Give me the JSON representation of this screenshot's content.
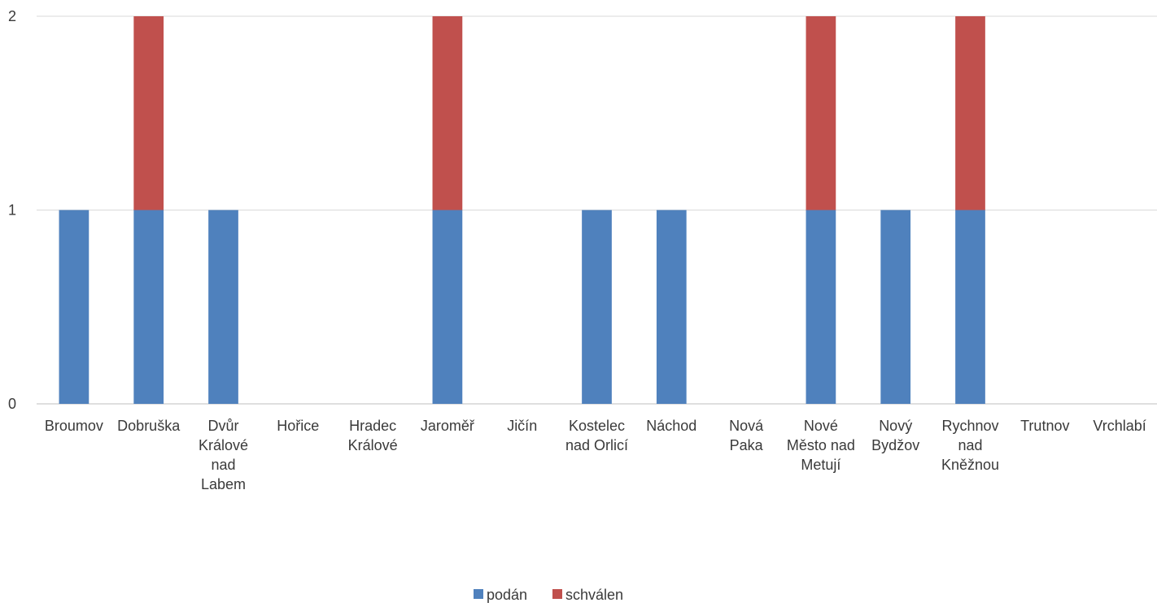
{
  "chart_data": {
    "type": "bar",
    "stacked": true,
    "categories": [
      [
        "Broumov"
      ],
      [
        "Dobruška"
      ],
      [
        "Dvůr",
        "Králové",
        "nad",
        "Labem"
      ],
      [
        "Hořice"
      ],
      [
        "Hradec",
        "Králové"
      ],
      [
        "Jaroměř"
      ],
      [
        "Jičín"
      ],
      [
        "Kostelec",
        "nad Orlicí"
      ],
      [
        "Náchod"
      ],
      [
        "Nová",
        "Paka"
      ],
      [
        "Nové",
        "Město nad",
        "Metují"
      ],
      [
        "Nový",
        "Bydžov"
      ],
      [
        "Rychnov",
        "nad",
        "Kněžnou"
      ],
      [
        "Trutnov"
      ],
      [
        "Vrchlabí"
      ]
    ],
    "series": [
      {
        "name": "podán",
        "color": "#4f81bd",
        "values": [
          1,
          1,
          1,
          0,
          0,
          1,
          0,
          1,
          1,
          0,
          1,
          1,
          1,
          0,
          0
        ]
      },
      {
        "name": "schválen",
        "color": "#c0504d",
        "values": [
          0,
          1,
          0,
          0,
          0,
          1,
          0,
          0,
          0,
          0,
          1,
          0,
          1,
          0,
          0
        ]
      }
    ],
    "ylim": [
      0,
      2
    ],
    "yticks": [
      0,
      1,
      2
    ],
    "grid": true,
    "legend": "bottom"
  }
}
